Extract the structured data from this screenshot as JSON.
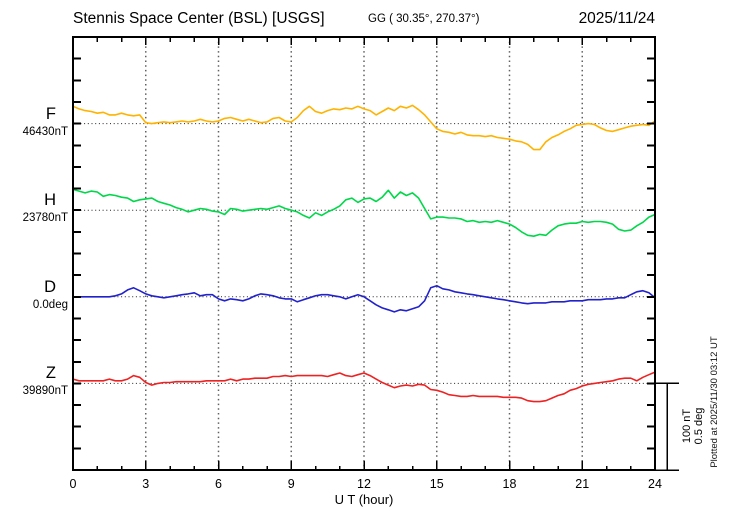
{
  "header": {
    "title": "Stennis Space Center (BSL)  [USGS]",
    "coordinates": "GG ( 30.35°, 270.37°)",
    "date": "2025/11/24"
  },
  "footer": {
    "plotted_at": "Plotted at 2025/11/30 03:12 UT"
  },
  "chart_data": {
    "type": "line",
    "title": "Stennis Space Center (BSL) [USGS] magnetogram 2025/11/24",
    "xlabel": "U T (hour)",
    "x_range_hours": [
      0,
      24
    ],
    "x_ticks": [
      "0",
      "3",
      "6",
      "9",
      "12",
      "15",
      "18",
      "21",
      "24"
    ],
    "x_minor_tick_step_hours": 1,
    "grid": "dotted vertical gridlines every 3 h; dotted horizontal baseline per channel",
    "legend_position": "left margin, one colored label per channel",
    "sample_step_hours": 0.25,
    "scale_bar": {
      "nt_label": "100 nT",
      "deg_label": "0.5 deg",
      "nT": 100,
      "deg": 0.5
    },
    "series": [
      {
        "id": "F",
        "label": "F",
        "baseline_label": "46430nT",
        "baseline": 46430,
        "unit": "nT",
        "color": "#FFB300",
        "offsets": [
          20,
          17,
          15,
          14,
          12,
          13,
          10,
          10,
          12,
          10,
          9,
          10,
          1,
          0,
          1,
          2,
          1,
          2,
          3,
          2,
          3,
          5,
          3,
          2,
          3,
          6,
          7,
          5,
          3,
          5,
          3,
          1,
          2,
          6,
          7,
          3,
          2,
          7,
          15,
          20,
          14,
          12,
          15,
          17,
          16,
          18,
          17,
          20,
          17,
          15,
          10,
          14,
          18,
          15,
          20,
          18,
          21,
          16,
          10,
          2,
          -6,
          -9,
          -10,
          -12,
          -10,
          -13,
          -14,
          -14,
          -15,
          -14,
          -16,
          -17,
          -18,
          -20,
          -21,
          -24,
          -30,
          -30,
          -21,
          -16,
          -13,
          -9,
          -6,
          -2,
          -1,
          0,
          -1,
          -5,
          -8,
          -9,
          -7,
          -5,
          -3,
          -2,
          -1,
          -2,
          3
        ]
      },
      {
        "id": "H",
        "label": "H",
        "baseline_label": "23780nT",
        "baseline": 23780,
        "unit": "nT",
        "color": "#00D84A",
        "offsets": [
          24,
          22,
          20,
          22,
          21,
          16,
          18,
          17,
          15,
          14,
          10,
          12,
          13,
          14,
          10,
          8,
          6,
          3,
          1,
          -2,
          0,
          2,
          1,
          -1,
          -2,
          -5,
          2,
          1,
          -1,
          0,
          1,
          2,
          1,
          3,
          5,
          2,
          0,
          -2,
          -6,
          -9,
          -3,
          -6,
          -2,
          1,
          5,
          12,
          14,
          9,
          13,
          14,
          10,
          15,
          23,
          14,
          21,
          17,
          20,
          14,
          2,
          -10,
          -8,
          -8,
          -9,
          -9,
          -10,
          -13,
          -12,
          -14,
          -13,
          -14,
          -12,
          -14,
          -16,
          -20,
          -25,
          -29,
          -30,
          -28,
          -29,
          -23,
          -18,
          -16,
          -15,
          -15,
          -13,
          -14,
          -13,
          -13,
          -14,
          -16,
          -22,
          -24,
          -23,
          -18,
          -14,
          -8,
          -5
        ]
      },
      {
        "id": "D",
        "label": "D",
        "baseline_label": "0.0deg",
        "baseline": 0.0,
        "unit": "deg",
        "color": "#2222CC",
        "offsets": [
          0,
          0,
          0,
          0,
          0,
          0,
          0,
          0.006,
          0.017,
          0.04,
          0.052,
          0.035,
          0.017,
          0.006,
          0,
          -0.006,
          0,
          0.006,
          0.012,
          0.017,
          0.023,
          0.006,
          0.012,
          0.012,
          -0.012,
          -0.023,
          -0.012,
          -0.017,
          -0.023,
          -0.012,
          0.006,
          0.017,
          0.012,
          0.006,
          -0.006,
          -0.012,
          -0.012,
          -0.029,
          -0.017,
          -0.006,
          0.006,
          0.012,
          0.012,
          0.006,
          0,
          -0.012,
          0,
          0.012,
          0,
          -0.023,
          -0.046,
          -0.064,
          -0.075,
          -0.087,
          -0.075,
          -0.081,
          -0.069,
          -0.058,
          -0.023,
          0.052,
          0.064,
          0.046,
          0.04,
          0.029,
          0.023,
          0.017,
          0.012,
          0.006,
          0,
          -0.006,
          -0.012,
          -0.017,
          -0.023,
          -0.029,
          -0.035,
          -0.04,
          -0.035,
          -0.035,
          -0.035,
          -0.029,
          -0.029,
          -0.029,
          -0.023,
          -0.023,
          -0.023,
          -0.017,
          -0.017,
          -0.017,
          -0.012,
          -0.012,
          -0.006,
          -0.006,
          0.012,
          0.029,
          0.035,
          0.023,
          -0.006
        ]
      },
      {
        "id": "Z",
        "label": "Z",
        "baseline_label": "39890nT",
        "baseline": 39890,
        "unit": "nT",
        "color": "#EE2222",
        "offsets": [
          5,
          3,
          3,
          3,
          3,
          3,
          5,
          3,
          3,
          5,
          9,
          7,
          1,
          -2,
          0,
          1,
          1,
          2,
          2,
          2,
          2,
          2,
          3,
          3,
          3,
          3,
          5,
          3,
          5,
          5,
          6,
          6,
          6,
          8,
          8,
          9,
          8,
          9,
          9,
          9,
          9,
          9,
          8,
          10,
          12,
          9,
          8,
          10,
          12,
          9,
          5,
          1,
          -2,
          -5,
          -3,
          -2,
          -3,
          -1,
          -2,
          -7,
          -8,
          -10,
          -13,
          -14,
          -15,
          -15,
          -14,
          -15,
          -15,
          -15,
          -15,
          -16,
          -16,
          -16,
          -17,
          -20,
          -21,
          -21,
          -20,
          -17,
          -14,
          -12,
          -8,
          -6,
          -3,
          -1,
          0,
          1,
          2,
          3,
          5,
          6,
          6,
          3,
          7,
          10,
          13
        ]
      }
    ]
  }
}
